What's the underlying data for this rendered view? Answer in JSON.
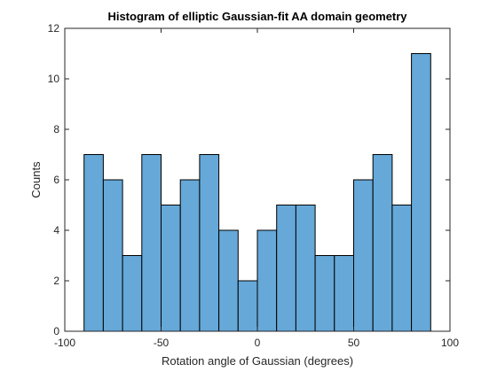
{
  "chart_data": {
    "type": "bar",
    "subtype": "histogram",
    "title": "Histogram of elliptic Gaussian-fit AA domain geometry",
    "xlabel": "Rotation angle of Gaussian (degrees)",
    "ylabel": "Counts",
    "xlim": [
      -100,
      100
    ],
    "ylim": [
      0,
      12
    ],
    "xticks": [
      -100,
      -50,
      0,
      50,
      100
    ],
    "yticks": [
      0,
      2,
      4,
      6,
      8,
      10,
      12
    ],
    "xtick_labels": [
      "-100",
      "-50",
      "0",
      "50",
      "100"
    ],
    "ytick_labels": [
      "0",
      "2",
      "4",
      "6",
      "8",
      "10",
      "12"
    ],
    "bin_edges": [
      -90,
      -80,
      -70,
      -60,
      -50,
      -40,
      -30,
      -20,
      -10,
      0,
      10,
      20,
      30,
      40,
      50,
      60,
      70,
      80,
      90
    ],
    "values": [
      7,
      6,
      3,
      7,
      5,
      6,
      7,
      4,
      2,
      4,
      5,
      5,
      3,
      3,
      6,
      7,
      5,
      11
    ],
    "grid": false,
    "legend": "none",
    "colors": {
      "bar_fill": "#66a8d8",
      "bar_edge": "#000000",
      "axis": "#262626"
    }
  }
}
